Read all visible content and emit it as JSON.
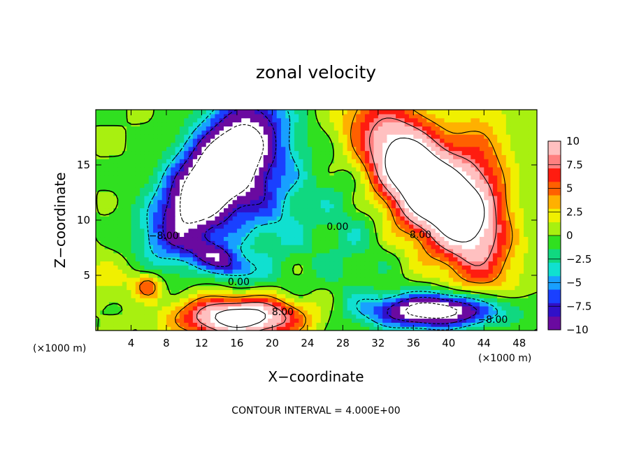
{
  "chart_data": {
    "type": "heatmap",
    "title": "zonal velocity",
    "xlabel": "X−coordinate",
    "ylabel": "Z−coordinate",
    "x_unit_left": "(×1000 m)",
    "x_unit_right": "(×1000 m)",
    "xlim": [
      0,
      50
    ],
    "ylim": [
      0,
      20
    ],
    "xticks": [
      4,
      8,
      12,
      16,
      20,
      24,
      28,
      32,
      36,
      40,
      44,
      48
    ],
    "yticks": [
      5,
      10,
      15
    ],
    "colorbar": {
      "range": [
        -10,
        10
      ],
      "ticks": [
        10,
        7.5,
        5,
        2.5,
        0,
        -2.5,
        -5,
        -7.5,
        -10
      ],
      "tick_labels": [
        "10",
        "7.5",
        "5",
        "2.5",
        "0",
        "−2.5",
        "−5",
        "−7.5",
        "−10"
      ],
      "colors": [
        "#6a0aa0",
        "#3010c8",
        "#1a40ff",
        "#18a0ff",
        "#10e0d0",
        "#10d880",
        "#30e020",
        "#a8f010",
        "#f0f000",
        "#ffb000",
        "#ff6000",
        "#ff1c10",
        "#ff8080",
        "#ffc0c0"
      ]
    },
    "contour_labels": [
      {
        "text": "8.00",
        "x": 36.8,
        "z": 8.4
      },
      {
        "text": "8.00",
        "x": 21.2,
        "z": 1.4
      },
      {
        "text": "0.00",
        "x": 27.4,
        "z": 9.1
      },
      {
        "text": "0.00",
        "x": 16.2,
        "z": 4.1
      },
      {
        "text": "−8.00",
        "x": 7.7,
        "z": 8.3
      },
      {
        "text": "−8.00",
        "x": 45.0,
        "z": 0.7
      }
    ],
    "contour_interval_text": "CONTOUR INTERVAL = 4.000E+00"
  }
}
